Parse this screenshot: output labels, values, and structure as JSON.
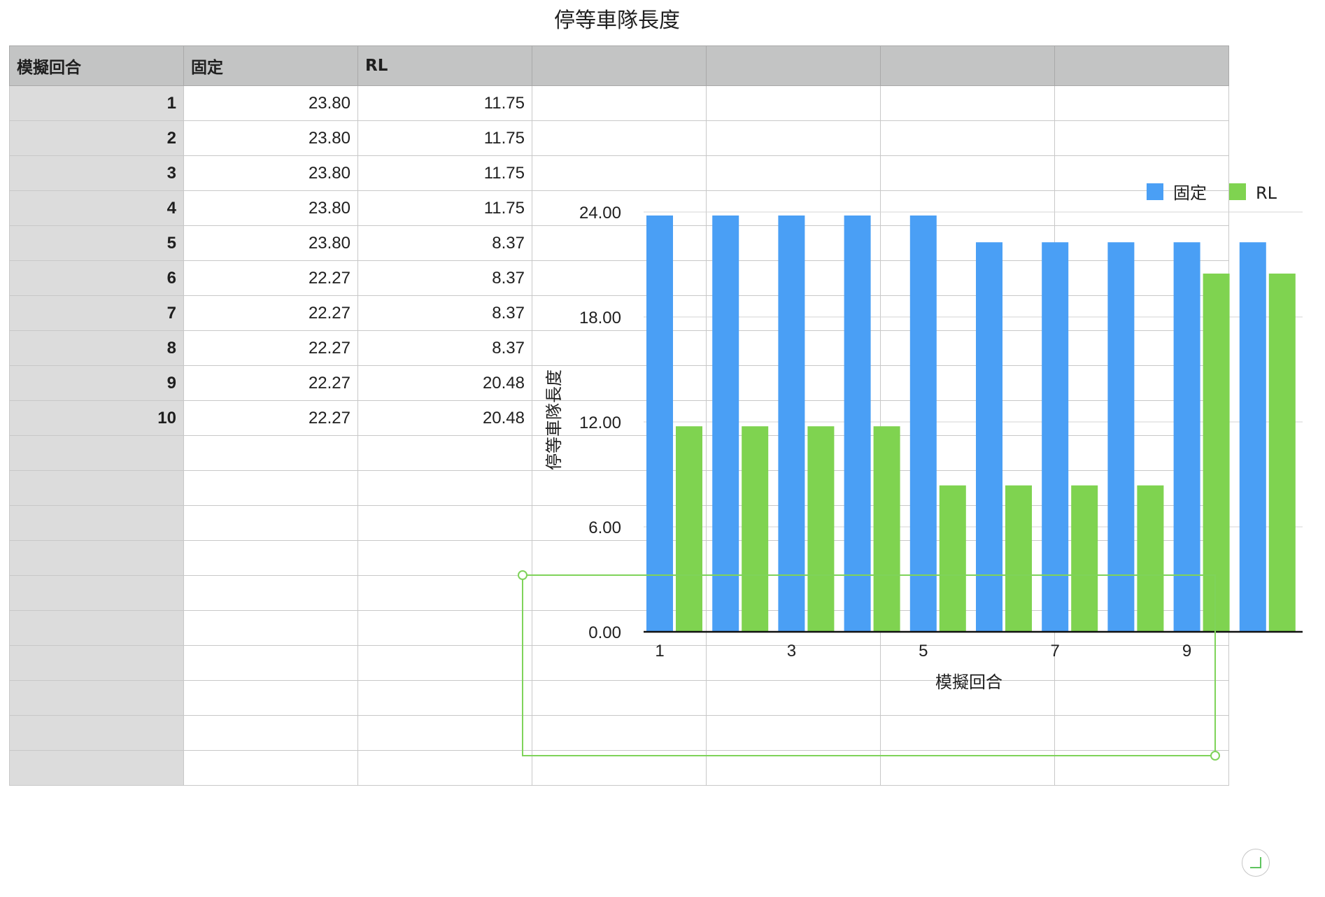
{
  "sheet": {
    "title": "停等車隊長度"
  },
  "table": {
    "columns": [
      "模擬回合",
      "固定",
      "RL"
    ],
    "rows": [
      [
        "1",
        "23.80",
        "11.75"
      ],
      [
        "2",
        "23.80",
        "11.75"
      ],
      [
        "3",
        "23.80",
        "11.75"
      ],
      [
        "4",
        "23.80",
        "11.75"
      ],
      [
        "5",
        "23.80",
        "8.37"
      ],
      [
        "6",
        "22.27",
        "8.37"
      ],
      [
        "7",
        "22.27",
        "8.37"
      ],
      [
        "8",
        "22.27",
        "8.37"
      ],
      [
        "9",
        "22.27",
        "20.48"
      ],
      [
        "10",
        "22.27",
        "20.48"
      ]
    ]
  },
  "colors": {
    "series_fixed": "#4a9ff5",
    "series_rl": "#7fd350",
    "selection": "#7fd35a"
  },
  "chart_data": {
    "type": "bar",
    "title": "",
    "xlabel": "模擬回合",
    "ylabel": "停等車隊長度",
    "categories": [
      "1",
      "2",
      "3",
      "4",
      "5",
      "6",
      "7",
      "8",
      "9",
      "10"
    ],
    "xtick_labels": [
      "1",
      "",
      "3",
      "",
      "5",
      "",
      "7",
      "",
      "9",
      ""
    ],
    "ylim": [
      0,
      24
    ],
    "yticks": [
      "0.00",
      "6.00",
      "12.00",
      "18.00",
      "24.00"
    ],
    "grid": true,
    "legend": "top-right",
    "series": [
      {
        "name": "固定",
        "values": [
          23.8,
          23.8,
          23.8,
          23.8,
          23.8,
          22.27,
          22.27,
          22.27,
          22.27,
          22.27
        ]
      },
      {
        "name": "RL",
        "values": [
          11.75,
          11.75,
          11.75,
          11.75,
          8.37,
          8.37,
          8.37,
          8.37,
          20.48,
          20.48
        ]
      }
    ]
  }
}
